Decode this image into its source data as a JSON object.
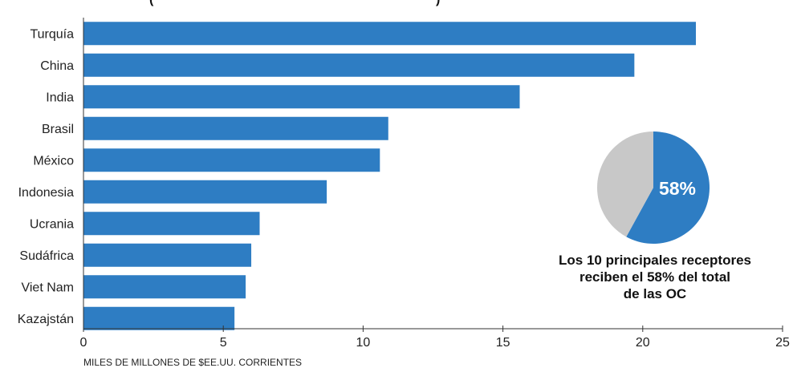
{
  "chart_data": [
    {
      "type": "bar",
      "orientation": "horizontal",
      "title": "",
      "categories": [
        "Turquía",
        "China",
        "India",
        "Brasil",
        "México",
        "Indonesia",
        "Ucrania",
        "Sudáfrica",
        "Viet Nam",
        "Kazajstán"
      ],
      "values": [
        21.9,
        19.7,
        15.6,
        10.9,
        10.6,
        8.7,
        6.3,
        6.0,
        5.8,
        5.4
      ],
      "xlabel": "MILES DE MILLONES DE $EE.UU. CORRIENTES",
      "ylabel": "",
      "xlim": [
        0,
        25
      ],
      "xticks": [
        0,
        5,
        10,
        15,
        20,
        25
      ],
      "grid": false,
      "bar_color": "#2e7dc3"
    },
    {
      "type": "pie",
      "values": [
        58,
        42
      ],
      "slice_label": "58%",
      "colors": [
        "#2e7dc3",
        "#c8c8c8"
      ],
      "caption": [
        "Los 10 principales receptores",
        "reciben el 58% del total",
        "de las OC"
      ]
    }
  ]
}
